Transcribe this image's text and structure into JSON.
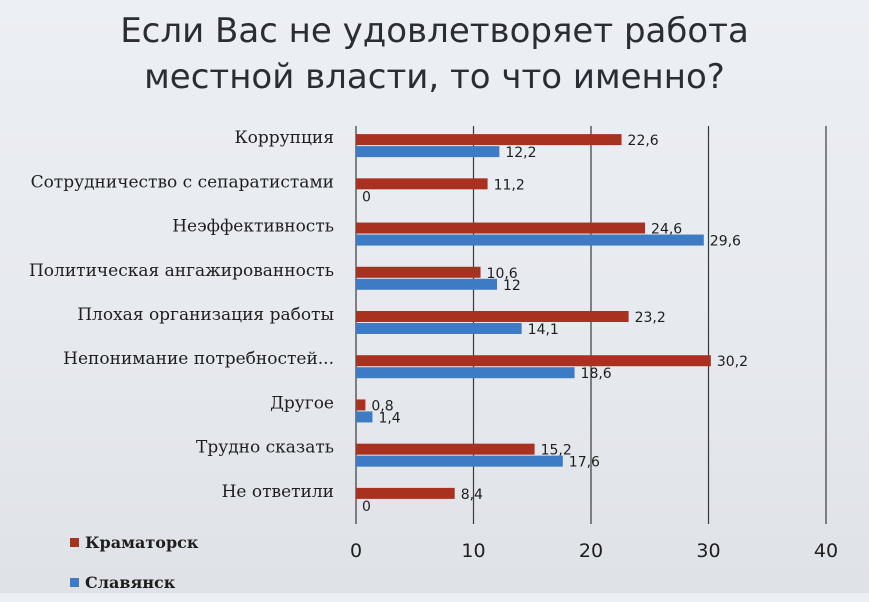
{
  "title": {
    "line1": "Если Вас не удовлетворяет работа",
    "line2": "местной власти, то что именно?"
  },
  "chart_data": {
    "type": "bar",
    "orientation": "horizontal",
    "categories": [
      "Коррупция",
      "Сотрудничество с сепаратистами",
      "Неэффективность",
      "Политическая ангажированность",
      "Плохая организация работы",
      "Непонимание потребностей...",
      "Другое",
      "Трудно сказать",
      "Не ответили"
    ],
    "series": [
      {
        "name": "Краматорск",
        "color": "#a8321f",
        "values": [
          22.6,
          11.2,
          24.6,
          10.6,
          23.2,
          30.2,
          0.8,
          15.2,
          8.4
        ],
        "labels": [
          "22,6",
          "11,2",
          "24,6",
          "10,6",
          "23,2",
          "30,2",
          "0,8",
          "15,2",
          "8,4"
        ]
      },
      {
        "name": "Славянск",
        "color": "#3d7cc4",
        "values": [
          12.2,
          0,
          29.6,
          12,
          14.1,
          18.6,
          1.4,
          17.6,
          0
        ],
        "labels": [
          "12,2",
          "0",
          "29,6",
          "12",
          "14,1",
          "18,6",
          "1,4",
          "17,6",
          "0"
        ]
      }
    ],
    "xlim": [
      0,
      40
    ],
    "xticks": [
      0,
      10,
      20,
      30,
      40
    ],
    "grid": true,
    "legend_position": "bottom-left"
  }
}
